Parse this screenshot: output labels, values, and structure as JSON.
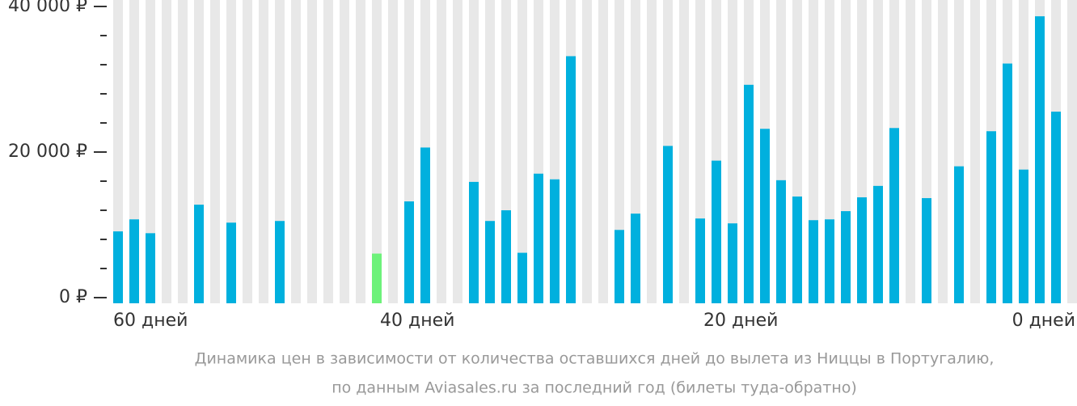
{
  "chart_data": {
    "type": "bar",
    "caption": [
      "Динамика цен в зависимости от количества оставшихся дней до вылета из Ниццы в Португалию,",
      "по данным Aviasales.ru за последний год (билеты туда-обратно)"
    ],
    "x_labels": [
      "60 дней",
      "40 дней",
      "20 дней",
      "0 дней"
    ],
    "values": [
      9100,
      10750,
      8850,
      null,
      null,
      12770,
      null,
      10300,
      null,
      null,
      10530,
      null,
      null,
      null,
      null,
      null,
      6050,
      null,
      13220,
      20620,
      null,
      null,
      15900,
      10530,
      12000,
      6160,
      17030,
      16250,
      33170,
      null,
      null,
      9300,
      11540,
      null,
      20840,
      null,
      10870,
      18820,
      10200,
      29240,
      23190,
      16130,
      13890,
      10640,
      10750,
      11880,
      13780,
      15350,
      23300,
      null,
      13670,
      null,
      18040,
      null,
      22860,
      32160,
      17590,
      38650,
      25550,
      null
    ],
    "color": "#00b0de",
    "highlight_color": "#6df27a",
    "highlight_index": 16,
    "slot_color": "#e8e8e8",
    "ylim": [
      0,
      40000
    ],
    "yticks": [
      {
        "value": 0,
        "label": "0 ₽"
      },
      {
        "value": 20000,
        "label": "20 000 ₽"
      },
      {
        "value": 40000,
        "label": "40 000 ₽"
      }
    ],
    "minor_yticks": [
      4000,
      8000,
      12000,
      16000,
      24000,
      28000,
      32000,
      36000
    ]
  }
}
